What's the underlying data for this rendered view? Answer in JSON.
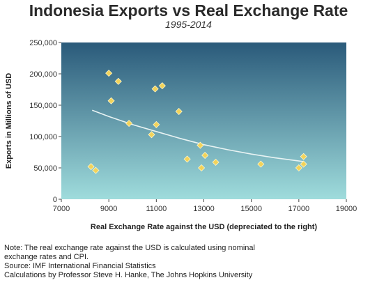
{
  "chart_data": {
    "type": "scatter",
    "title": "Indonesia Exports vs Real Exchange Rate",
    "subtitle": "1995-2014",
    "xlabel": "Real Exchange Rate against the USD (depreciated to the right)",
    "ylabel": "Exports in Millions of USD",
    "xlim": [
      7000,
      19000
    ],
    "ylim": [
      0,
      250000
    ],
    "x_ticks": [
      7000,
      9000,
      11000,
      13000,
      15000,
      17000,
      19000
    ],
    "x_tick_labels": [
      "7000",
      "9000",
      "11000",
      "13000",
      "15000",
      "17000",
      "19000"
    ],
    "y_ticks": [
      0,
      50000,
      100000,
      150000,
      200000,
      250000
    ],
    "y_tick_labels": [
      "0",
      "50,000",
      "100,000",
      "150,000",
      "200,000",
      "250,000"
    ],
    "grid": false,
    "plot_background": [
      "#2a5a7a",
      "#9fdcdc"
    ],
    "marker_color": "#f2d35a",
    "points": [
      {
        "x": 8250,
        "y": 52000
      },
      {
        "x": 8450,
        "y": 46000
      },
      {
        "x": 9000,
        "y": 201000
      },
      {
        "x": 9100,
        "y": 157000
      },
      {
        "x": 9400,
        "y": 188000
      },
      {
        "x": 9850,
        "y": 121000
      },
      {
        "x": 10800,
        "y": 103000
      },
      {
        "x": 10950,
        "y": 176000
      },
      {
        "x": 11000,
        "y": 119000
      },
      {
        "x": 11250,
        "y": 181000
      },
      {
        "x": 11950,
        "y": 140000
      },
      {
        "x": 12300,
        "y": 64000
      },
      {
        "x": 12850,
        "y": 86000
      },
      {
        "x": 12900,
        "y": 50000
      },
      {
        "x": 13050,
        "y": 70000
      },
      {
        "x": 13500,
        "y": 59000
      },
      {
        "x": 15400,
        "y": 56000
      },
      {
        "x": 17000,
        "y": 50000
      },
      {
        "x": 17200,
        "y": 56000
      },
      {
        "x": 17200,
        "y": 68000
      }
    ],
    "trendline": {
      "color": "#e8f3f3",
      "x": [
        8300,
        9000,
        10000,
        11000,
        12000,
        13000,
        14000,
        15000,
        16000,
        17000,
        17200
      ],
      "y": [
        142000,
        132000,
        119000,
        108000,
        97000,
        87000,
        79000,
        72000,
        66000,
        61000,
        60000
      ]
    }
  },
  "notes": {
    "line1": "Note: The real exchange rate against the USD is calculated using nominal\nexchange rates and CPI.",
    "line2": "Source: IMF International Financial Statistics",
    "line3": "Calculations by Professor Steve H. Hanke, The Johns Hopkins University"
  }
}
